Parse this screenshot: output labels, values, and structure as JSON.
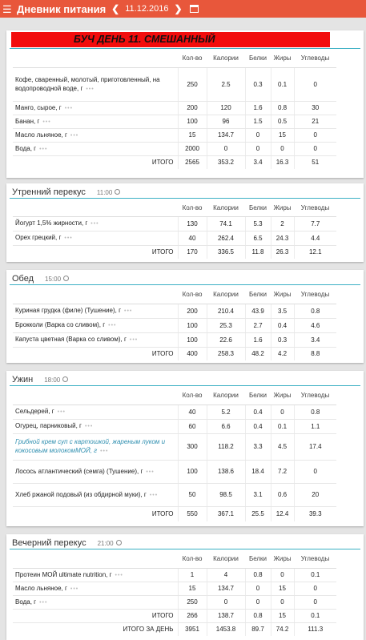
{
  "header": {
    "title": "Дневник питания",
    "date": "11.12.2016"
  },
  "columns": [
    "Кол-во",
    "Калории",
    "Белки",
    "Жиры",
    "Углеводы"
  ],
  "meals": [
    {
      "banner": "БУЧ ДЕНЬ 11.  СМЕШАННЫЙ",
      "rows": [
        {
          "name": "Кофе, сваренный, молотый, приготовленный, на водопроводной воде, г",
          "qty": "250",
          "cal": "2.5",
          "prot": "0.3",
          "fat": "0.1",
          "carb": "0"
        },
        {
          "name": "Манго, сырое, г",
          "qty": "200",
          "cal": "120",
          "prot": "1.6",
          "fat": "0.8",
          "carb": "30"
        },
        {
          "name": "Банан, г",
          "qty": "100",
          "cal": "96",
          "prot": "1.5",
          "fat": "0.5",
          "carb": "21"
        },
        {
          "name": "Масло льняное, г",
          "qty": "15",
          "cal": "134.7",
          "prot": "0",
          "fat": "15",
          "carb": "0"
        },
        {
          "name": "Вода, г",
          "qty": "2000",
          "cal": "0",
          "prot": "0",
          "fat": "0",
          "carb": "0"
        }
      ],
      "total": {
        "label": "ИТОГО",
        "qty": "2565",
        "cal": "353.2",
        "prot": "3.4",
        "fat": "16.3",
        "carb": "51"
      }
    },
    {
      "name": "Утренний перекус",
      "time": "11:00",
      "rows": [
        {
          "name": "Йогурт 1,5% жирности, г",
          "qty": "130",
          "cal": "74.1",
          "prot": "5.3",
          "fat": "2",
          "carb": "7.7"
        },
        {
          "name": "Орех грецкий, г",
          "qty": "40",
          "cal": "262.4",
          "prot": "6.5",
          "fat": "24.3",
          "carb": "4.4"
        }
      ],
      "total": {
        "label": "ИТОГО",
        "qty": "170",
        "cal": "336.5",
        "prot": "11.8",
        "fat": "26.3",
        "carb": "12.1"
      }
    },
    {
      "name": "Обед",
      "time": "15:00",
      "rows": [
        {
          "name": "Куриная грудка (филе) (Тушение), г",
          "qty": "200",
          "cal": "210.4",
          "prot": "43.9",
          "fat": "3.5",
          "carb": "0.8"
        },
        {
          "name": "Брокколи (Варка со сливом), г",
          "qty": "100",
          "cal": "25.3",
          "prot": "2.7",
          "fat": "0.4",
          "carb": "4.6"
        },
        {
          "name": "Капуста цветная (Варка со сливом), г",
          "qty": "100",
          "cal": "22.6",
          "prot": "1.6",
          "fat": "0.3",
          "carb": "3.4"
        }
      ],
      "total": {
        "label": "ИТОГО",
        "qty": "400",
        "cal": "258.3",
        "prot": "48.2",
        "fat": "4.2",
        "carb": "8.8"
      }
    },
    {
      "name": "Ужин",
      "time": "18:00",
      "rows": [
        {
          "name": "Сельдерей, г",
          "qty": "40",
          "cal": "5.2",
          "prot": "0.4",
          "fat": "0",
          "carb": "0.8"
        },
        {
          "name": "Огурец, парниковый, г",
          "qty": "60",
          "cal": "6.6",
          "prot": "0.4",
          "fat": "0.1",
          "carb": "1.1"
        },
        {
          "name": "Грибной крем суп с картошкой, жареным луком и кокосовым молокомМОЙ, г",
          "qty": "300",
          "cal": "118.2",
          "prot": "3.3",
          "fat": "4.5",
          "carb": "17.4",
          "link": true
        },
        {
          "name": "Лосось атлантический (семга) (Тушение), г",
          "qty": "100",
          "cal": "138.6",
          "prot": "18.4",
          "fat": "7.2",
          "carb": "0"
        },
        {
          "name": "Хлеб ржаной подовый (из обдирной муки), г",
          "qty": "50",
          "cal": "98.5",
          "prot": "3.1",
          "fat": "0.6",
          "carb": "20"
        }
      ],
      "total": {
        "label": "ИТОГО",
        "qty": "550",
        "cal": "367.1",
        "prot": "25.5",
        "fat": "12.4",
        "carb": "39.3"
      }
    },
    {
      "name": "Вечерний перекус",
      "time": "21:00",
      "rows": [
        {
          "name": "Протеин МОЙ ultimate nutrition, г",
          "qty": "1",
          "cal": "4",
          "prot": "0.8",
          "fat": "0",
          "carb": "0.1"
        },
        {
          "name": "Масло льняное, г",
          "qty": "15",
          "cal": "134.7",
          "prot": "0",
          "fat": "15",
          "carb": "0"
        },
        {
          "name": "Вода, г",
          "qty": "250",
          "cal": "0",
          "prot": "0",
          "fat": "0",
          "carb": "0"
        }
      ],
      "total": {
        "label": "ИТОГО",
        "qty": "266",
        "cal": "138.7",
        "prot": "0.8",
        "fat": "15",
        "carb": "0.1"
      },
      "day_total": {
        "label": "ИТОГО ЗА ДЕНЬ",
        "qty": "3951",
        "cal": "1453.8",
        "prot": "89.7",
        "fat": "74.2",
        "carb": "111.3"
      }
    }
  ],
  "row_more_glyph": "•••",
  "icons": {
    "menu": "hamburger-icon",
    "prev": "chevron-left-icon",
    "next": "chevron-right-icon",
    "calendar": "calendar-icon",
    "clock": "clock-icon"
  },
  "colors": {
    "header_bg": "#e8573b",
    "banner_bg": "#f20d0d",
    "accent_line": "#3bb0c4",
    "link": "#2f8fb0"
  }
}
